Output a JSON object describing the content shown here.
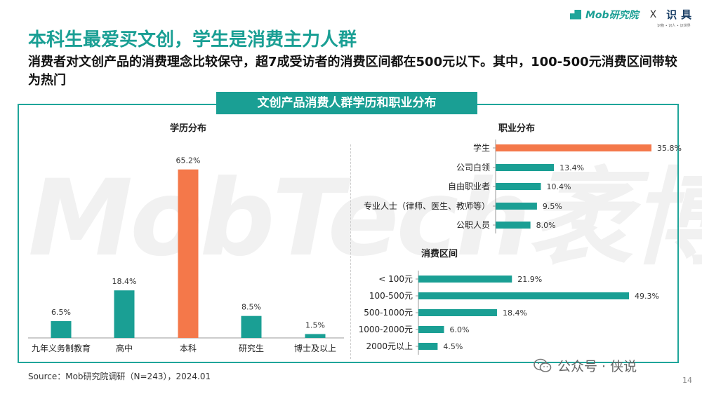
{
  "watermark": "MobTech袤博",
  "logo": {
    "brand": "Mob研究院",
    "x": "X",
    "partner": "识具",
    "partner_small": "识物 ∙ 识人 ∙ 识世界"
  },
  "title": "本科生最爱买文创，学生是消费主力人群",
  "subtitle": "消费者对文创产品的消费理念比较保守，超7成受访者的消费区间都在500元以下。其中，100-500元消费区间带较为热门",
  "banner": "文创产品消费人群学历和职业分布",
  "colors": {
    "teal": "#1a9f94",
    "orange": "#f4784a"
  },
  "chart_data": [
    {
      "type": "bar",
      "title": "学历分布",
      "categories": [
        "九年义务制教育",
        "高中",
        "本科",
        "研究生",
        "博士及以上"
      ],
      "values": [
        6.5,
        18.4,
        65.2,
        8.5,
        1.5
      ],
      "value_labels": [
        "6.5%",
        "18.4%",
        "65.2%",
        "8.5%",
        "1.5%"
      ],
      "highlight_index": 2,
      "ylim": [
        0,
        70
      ]
    },
    {
      "type": "bar",
      "orientation": "horizontal",
      "title": "职业分布",
      "categories": [
        "学生",
        "公司白领",
        "自由职业者",
        "专业人士（律师、医生、教师等）",
        "公职人员"
      ],
      "values": [
        35.8,
        13.4,
        10.4,
        9.5,
        8.0
      ],
      "value_labels": [
        "35.8%",
        "13.4%",
        "10.4%",
        "9.5%",
        "8.0%"
      ],
      "highlight_index": 0,
      "xlim": [
        0,
        36
      ]
    },
    {
      "type": "bar",
      "orientation": "horizontal",
      "title": "消费区间",
      "categories": [
        "< 100元",
        "100-500元",
        "500-1000元",
        "1000-2000元",
        "2000元以上"
      ],
      "values": [
        21.9,
        49.3,
        18.4,
        6.0,
        4.5
      ],
      "value_labels": [
        "21.9%",
        "49.3%",
        "18.4%",
        "6.0%",
        "4.5%"
      ],
      "highlight_index": -1,
      "xlim": [
        0,
        50
      ]
    }
  ],
  "source": "Source：Mob研究院调研（N=243），2024.01",
  "wechat": "公众号 · 侠说",
  "page_number": "14"
}
